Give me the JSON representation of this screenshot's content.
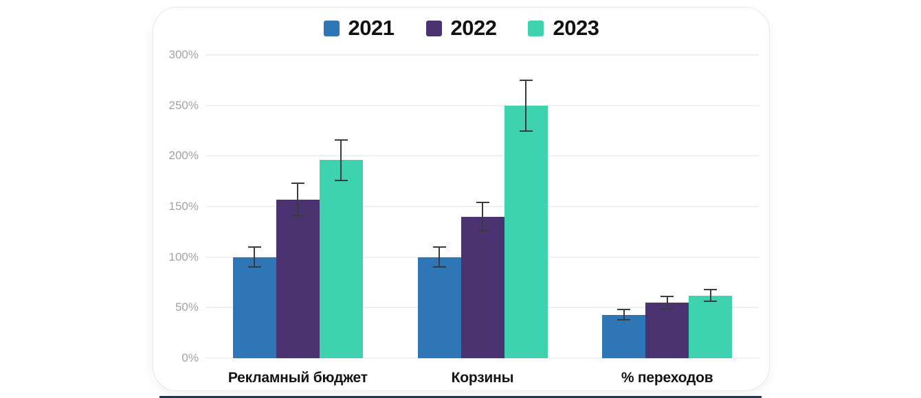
{
  "chart_data": {
    "type": "bar",
    "title": "",
    "xlabel": "",
    "ylabel": "",
    "categories": [
      "Рекламный бюджет",
      "Корзины",
      "% переходов"
    ],
    "series": [
      {
        "name": "2021",
        "color": "#2e76b5",
        "values": [
          100,
          100,
          43
        ],
        "errors": [
          10,
          10,
          5
        ]
      },
      {
        "name": "2022",
        "color": "#4a3370",
        "values": [
          157,
          140,
          55
        ],
        "errors": [
          16,
          14,
          6
        ]
      },
      {
        "name": "2023",
        "color": "#3ed2ae",
        "values": [
          196,
          250,
          62
        ],
        "errors": [
          20,
          25,
          6
        ]
      }
    ],
    "ylim": [
      0,
      300
    ],
    "ytick_step": 50,
    "ytick_suffix": "%",
    "grid": true,
    "legend_position": "top-center"
  },
  "style": {
    "page_bg": "#ffffff",
    "card_bg": "#ffffff",
    "card_border": "#e7e7ea",
    "grid_color": "#eff0f2",
    "tick_color": "#a2a2a8",
    "category_color": "#141414",
    "legend_text_color": "#111111",
    "error_bar_color": "#3a3b40",
    "bottom_bar_color": "#1e3360"
  }
}
